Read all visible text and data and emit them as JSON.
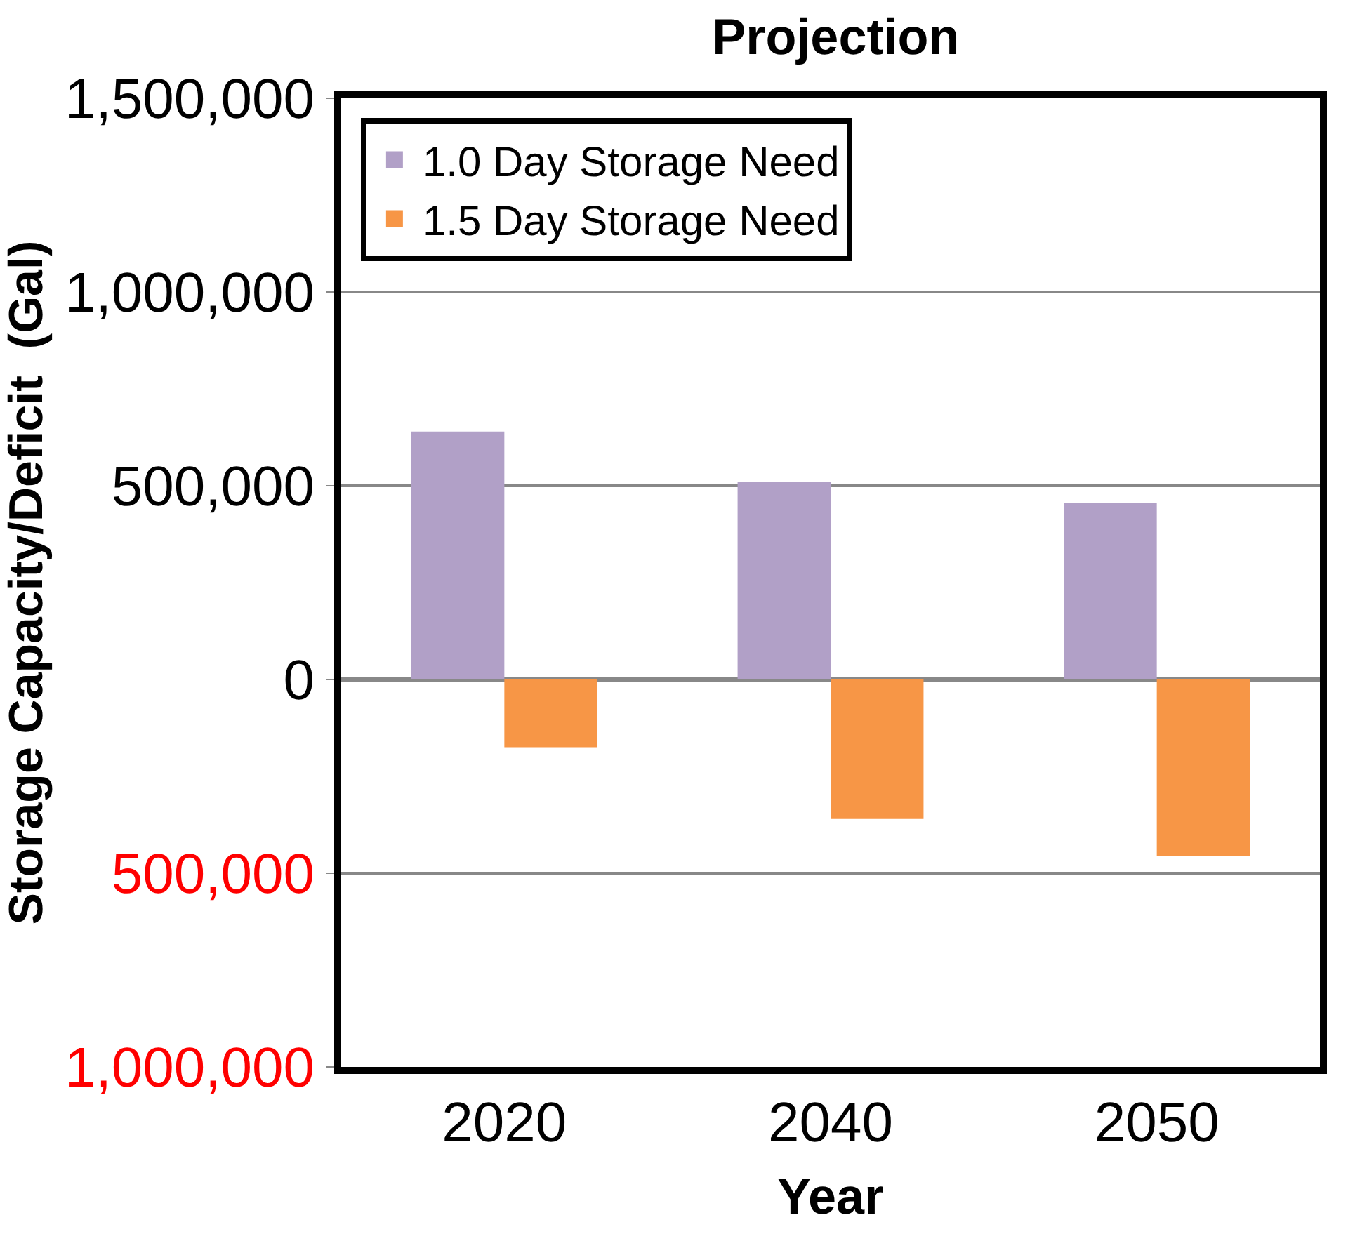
{
  "chart_data": {
    "type": "bar",
    "title": "Projection",
    "xlabel": "Year",
    "ylabel": "Storage Capacity/Deficit  (Gal)",
    "categories": [
      "2020",
      "2040",
      "2050"
    ],
    "series": [
      {
        "name": "1.0 Day Storage Need",
        "color": "#b1a0c7",
        "values": [
          640000,
          510000,
          455000
        ]
      },
      {
        "name": "1.5 Day Storage Need",
        "color": "#f79646",
        "values": [
          -175000,
          -360000,
          -455000
        ]
      }
    ],
    "ylim": [
      -1000000,
      1500000
    ],
    "yticks": [
      {
        "value": -1000000,
        "label": "1,000,000"
      },
      {
        "value": -500000,
        "label": "500,000"
      },
      {
        "value": 0,
        "label": "0"
      },
      {
        "value": 500000,
        "label": "500,000"
      },
      {
        "value": 1000000,
        "label": "1,000,000"
      },
      {
        "value": 1500000,
        "label": "1,500,000"
      }
    ],
    "grid": "y",
    "legend": "top left"
  }
}
